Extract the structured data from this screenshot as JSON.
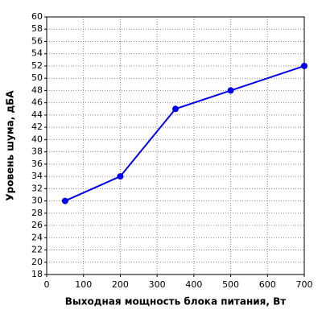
{
  "chart_data": {
    "type": "line",
    "xlabel": "Выходная мощность блока питания, Вт",
    "ylabel": "Уровень шума, дБА",
    "x": [
      50,
      200,
      350,
      500,
      700
    ],
    "series": [
      {
        "color": "#0000ee",
        "values": [
          30,
          34,
          45,
          48,
          52
        ]
      }
    ],
    "xlim": [
      0,
      700
    ],
    "xticks": [
      0,
      100,
      200,
      300,
      400,
      500,
      600,
      700
    ],
    "ylim": [
      18,
      60
    ],
    "yticks": [
      18,
      20,
      22,
      24,
      26,
      28,
      30,
      32,
      34,
      36,
      38,
      40,
      42,
      44,
      46,
      48,
      50,
      52,
      54,
      56,
      58,
      60
    ],
    "grid": true
  }
}
